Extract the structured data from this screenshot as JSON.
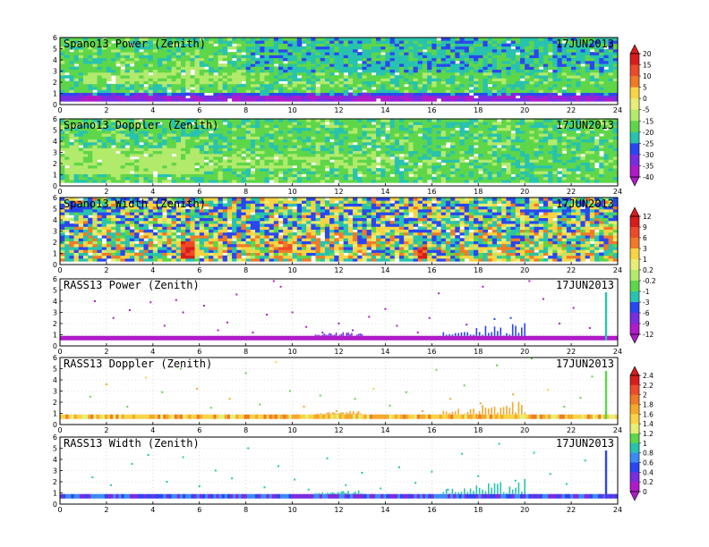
{
  "chart_data": [
    {
      "type": "heatmap",
      "title": "Spano13 Power (Zenith)",
      "date": "17JUN2013",
      "x_ticks": [
        "0",
        "2",
        "4",
        "6",
        "8",
        "10",
        "12",
        "14",
        "16",
        "18",
        "20",
        "22",
        "24"
      ],
      "y_ticks": [
        "0",
        "1",
        "2",
        "3",
        "4",
        "5",
        "6"
      ],
      "xlim": [
        0,
        24
      ],
      "ylim": [
        0,
        6
      ],
      "colorbar": "A",
      "field": {
        "base": -18,
        "features": [
          {
            "y0": 0.3,
            "y1": 0.75,
            "value": -35
          },
          {
            "y0": 0.75,
            "y1": 1.0,
            "value": -28
          },
          {
            "x0": 5.5,
            "x1": 6.0,
            "y0": 1.0,
            "y1": 4.0,
            "value": -12
          },
          {
            "x0": 1.0,
            "x1": 9.0,
            "y0": 1.8,
            "y1": 3.0,
            "value": -14
          },
          {
            "x0": 8.0,
            "x1": 24.0,
            "y0": 3.0,
            "y1": 6.0,
            "value": -22
          }
        ]
      }
    },
    {
      "type": "heatmap",
      "title": "Spano13 Doppler (Zenith)",
      "date": "17JUN2013",
      "x_ticks": [
        "0",
        "2",
        "4",
        "6",
        "8",
        "10",
        "12",
        "14",
        "16",
        "18",
        "20",
        "22",
        "24"
      ],
      "y_ticks": [
        "0",
        "1",
        "2",
        "3",
        "4",
        "5",
        "6"
      ],
      "xlim": [
        0,
        24
      ],
      "ylim": [
        0,
        6
      ],
      "colorbar": "A",
      "field": {
        "base": -18,
        "features": [
          {
            "x0": 0.0,
            "x1": 6.0,
            "y0": 1.0,
            "y1": 3.5,
            "value": -12
          },
          {
            "x0": 6.0,
            "x1": 14.0,
            "y0": 1.5,
            "y1": 3.0,
            "value": -14
          }
        ]
      }
    },
    {
      "type": "heatmap",
      "title": "Spano13 Width (Zenith)",
      "date": "17JUN2013",
      "x_ticks": [
        "0",
        "2",
        "4",
        "6",
        "8",
        "10",
        "12",
        "14",
        "16",
        "18",
        "20",
        "22",
        "24"
      ],
      "y_ticks": [
        "0",
        "1",
        "2",
        "3",
        "4",
        "5",
        "6"
      ],
      "xlim": [
        0,
        24
      ],
      "ylim": [
        0,
        6
      ],
      "colorbar": "B",
      "field": {
        "base": -1,
        "features": [
          {
            "y0": 0.3,
            "y1": 3.0,
            "value": 0.2
          },
          {
            "x0": 5.3,
            "x1": 5.7,
            "y0": 0.5,
            "y1": 2.0,
            "value": 8
          },
          {
            "x0": 9.5,
            "x1": 10.0,
            "y0": 1.0,
            "y1": 2.0,
            "value": 5
          },
          {
            "x0": 15.3,
            "x1": 15.8,
            "y0": 0.5,
            "y1": 1.5,
            "value": 9
          }
        ]
      }
    },
    {
      "type": "scatter",
      "title": "RASS13 Power (Zenith)",
      "date": "17JUN2013",
      "x_ticks": [
        "0",
        "2",
        "4",
        "6",
        "8",
        "10",
        "12",
        "14",
        "16",
        "18",
        "20",
        "22",
        "24"
      ],
      "y_ticks": [
        "0",
        "1",
        "2",
        "3",
        "4",
        "5",
        "6"
      ],
      "xlim": [
        0,
        24
      ],
      "ylim": [
        0,
        6
      ],
      "colorbar": "B",
      "band": {
        "y0": 0.5,
        "y1": 0.9,
        "value": -12
      },
      "spike": {
        "x": 23.5,
        "y0": 0.5,
        "y1": 4.8,
        "value": -3
      },
      "streaks": [
        {
          "x0": 11.0,
          "x1": 13.0,
          "y0": 0.9,
          "y1": 1.4,
          "value": -9
        },
        {
          "x0": 16.5,
          "x1": 20.0,
          "y0": 0.9,
          "y1": 2.3,
          "value": -6
        }
      ],
      "points": [
        [
          1.5,
          4.0,
          -12
        ],
        [
          2.3,
          2.5,
          -12
        ],
        [
          3.0,
          3.2,
          -12
        ],
        [
          3.9,
          3.9,
          -12
        ],
        [
          4.5,
          1.8,
          -12
        ],
        [
          5.0,
          4.1,
          -12
        ],
        [
          5.3,
          3.0,
          -12
        ],
        [
          6.2,
          3.6,
          -12
        ],
        [
          6.8,
          1.4,
          -12
        ],
        [
          7.2,
          2.1,
          -12
        ],
        [
          7.6,
          4.6,
          -12
        ],
        [
          8.3,
          1.2,
          -12
        ],
        [
          8.9,
          2.8,
          -12
        ],
        [
          9.2,
          5.8,
          -12
        ],
        [
          9.5,
          5.3,
          -12
        ],
        [
          10.0,
          3.0,
          -12
        ],
        [
          10.6,
          1.7,
          -12
        ],
        [
          11.3,
          1.2,
          -9
        ],
        [
          12.0,
          2.0,
          -12
        ],
        [
          12.6,
          1.4,
          -9
        ],
        [
          13.3,
          2.6,
          -12
        ],
        [
          14.0,
          3.3,
          -12
        ],
        [
          14.5,
          1.8,
          -12
        ],
        [
          15.4,
          1.2,
          -12
        ],
        [
          15.9,
          2.5,
          -12
        ],
        [
          16.3,
          4.7,
          -12
        ],
        [
          17.5,
          1.9,
          -9
        ],
        [
          18.2,
          5.3,
          -12
        ],
        [
          18.7,
          2.4,
          -6
        ],
        [
          19.4,
          2.5,
          -6
        ],
        [
          20.2,
          5.8,
          -12
        ],
        [
          20.8,
          4.2,
          -12
        ],
        [
          21.5,
          2.0,
          -12
        ],
        [
          22.1,
          3.4,
          -12
        ],
        [
          22.8,
          1.6,
          -12
        ]
      ]
    },
    {
      "type": "scatter",
      "title": "RASS13 Doppler (Zenith)",
      "date": "17JUN2013",
      "x_ticks": [
        "0",
        "2",
        "4",
        "6",
        "8",
        "10",
        "12",
        "14",
        "16",
        "18",
        "20",
        "22",
        "24"
      ],
      "y_ticks": [
        "0",
        "1",
        "2",
        "3",
        "4",
        "5",
        "6"
      ],
      "xlim": [
        0,
        24
      ],
      "ylim": [
        0,
        6
      ],
      "colorbar": "C",
      "band": {
        "y0": 0.5,
        "y1": 0.9,
        "value": 1.6
      },
      "spike": {
        "x": 23.5,
        "y0": 0.5,
        "y1": 4.8,
        "value": 1.1
      },
      "streaks": [
        {
          "x0": 11.0,
          "x1": 13.0,
          "y0": 0.9,
          "y1": 1.3,
          "value": 1.6
        },
        {
          "x0": 16.5,
          "x1": 20.0,
          "y0": 0.9,
          "y1": 2.3,
          "value": 1.6
        }
      ],
      "points": [
        [
          1.3,
          2.5,
          1.0
        ],
        [
          2.0,
          3.6,
          1.6
        ],
        [
          2.9,
          1.6,
          1.0
        ],
        [
          3.7,
          4.2,
          1.4
        ],
        [
          4.4,
          2.9,
          1.0
        ],
        [
          5.2,
          5.0,
          1.0
        ],
        [
          5.9,
          3.2,
          1.6
        ],
        [
          6.5,
          1.5,
          1.0
        ],
        [
          7.3,
          2.3,
          1.6
        ],
        [
          8.0,
          4.6,
          1.0
        ],
        [
          8.6,
          1.8,
          1.0
        ],
        [
          9.3,
          5.6,
          1.4
        ],
        [
          9.9,
          3.0,
          1.0
        ],
        [
          10.5,
          1.6,
          1.6
        ],
        [
          11.2,
          2.6,
          1.0
        ],
        [
          11.9,
          1.2,
          1.6
        ],
        [
          12.7,
          2.3,
          1.0
        ],
        [
          13.5,
          3.2,
          1.4
        ],
        [
          14.2,
          1.7,
          1.0
        ],
        [
          14.9,
          2.9,
          1.0
        ],
        [
          15.6,
          1.2,
          1.6
        ],
        [
          16.2,
          4.9,
          1.0
        ],
        [
          16.8,
          2.3,
          1.6
        ],
        [
          17.4,
          3.5,
          1.0
        ],
        [
          18.1,
          1.9,
          1.6
        ],
        [
          18.8,
          5.3,
          1.0
        ],
        [
          19.5,
          2.7,
          1.6
        ],
        [
          20.3,
          5.9,
          1.0
        ],
        [
          21.0,
          3.1,
          1.4
        ],
        [
          21.7,
          1.6,
          1.0
        ],
        [
          22.4,
          2.4,
          1.0
        ],
        [
          22.9,
          4.3,
          1.0
        ]
      ]
    },
    {
      "type": "scatter",
      "title": "RASS13 Width (Zenith)",
      "date": "17JUN2013",
      "x_ticks": [
        "0",
        "2",
        "4",
        "6",
        "8",
        "10",
        "12",
        "14",
        "16",
        "18",
        "20",
        "22",
        "24"
      ],
      "y_ticks": [
        "0",
        "1",
        "2",
        "3",
        "4",
        "5",
        "6"
      ],
      "xlim": [
        0,
        24
      ],
      "ylim": [
        0,
        6
      ],
      "colorbar": "C",
      "band": {
        "y0": 0.5,
        "y1": 0.9,
        "value": 0.5
      },
      "spike": {
        "x": 23.5,
        "y0": 0.5,
        "y1": 4.8,
        "value": 0.5
      },
      "streaks": [
        {
          "x0": 11.0,
          "x1": 13.0,
          "y0": 0.9,
          "y1": 1.3,
          "value": 0.9
        },
        {
          "x0": 16.5,
          "x1": 20.0,
          "y0": 0.9,
          "y1": 2.3,
          "value": 0.9
        }
      ],
      "points": [
        [
          1.4,
          2.4,
          0.9
        ],
        [
          2.2,
          1.7,
          0.9
        ],
        [
          3.1,
          3.6,
          0.9
        ],
        [
          3.8,
          4.4,
          0.9
        ],
        [
          4.6,
          2.0,
          0.9
        ],
        [
          5.3,
          4.2,
          0.9
        ],
        [
          6.0,
          1.6,
          0.9
        ],
        [
          6.7,
          3.0,
          0.9
        ],
        [
          7.4,
          2.3,
          0.9
        ],
        [
          8.1,
          5.0,
          0.9
        ],
        [
          8.8,
          1.5,
          0.9
        ],
        [
          9.4,
          3.4,
          0.9
        ],
        [
          10.1,
          2.2,
          0.9
        ],
        [
          10.7,
          1.3,
          0.9
        ],
        [
          11.5,
          4.1,
          0.9
        ],
        [
          12.3,
          1.7,
          0.9
        ],
        [
          13.0,
          2.8,
          0.9
        ],
        [
          13.8,
          1.4,
          0.9
        ],
        [
          14.6,
          3.3,
          0.9
        ],
        [
          15.3,
          1.9,
          0.9
        ],
        [
          16.0,
          2.9,
          0.9
        ],
        [
          16.7,
          1.3,
          0.9
        ],
        [
          17.3,
          4.5,
          0.9
        ],
        [
          18.0,
          2.5,
          0.9
        ],
        [
          18.9,
          5.4,
          0.9
        ],
        [
          19.6,
          2.1,
          0.9
        ],
        [
          20.4,
          4.6,
          0.9
        ],
        [
          21.1,
          2.7,
          0.9
        ],
        [
          21.8,
          1.8,
          0.9
        ],
        [
          22.6,
          3.9,
          0.9
        ]
      ]
    }
  ],
  "colorbars": {
    "A": {
      "labels": [
        "20",
        "15",
        "10",
        "5",
        "0",
        "-5",
        "-15",
        "-20",
        "-25",
        "-30",
        "-35",
        "-40"
      ],
      "values": [
        20,
        15,
        10,
        5,
        0,
        -5,
        -15,
        -20,
        -25,
        -30,
        -35,
        -40
      ]
    },
    "B": {
      "labels": [
        "12",
        "9",
        "6",
        "3",
        "1",
        "0.2",
        "-0.2",
        "-1",
        "-3",
        "-6",
        "-9",
        "-12"
      ],
      "values": [
        12,
        9,
        6,
        3,
        1,
        0.2,
        -0.2,
        -1,
        -3,
        -6,
        -9,
        -12
      ]
    },
    "C": {
      "labels": [
        "2.4",
        "2.2",
        "2",
        "1.8",
        "1.6",
        "1.4",
        "1.2",
        "1",
        "0.8",
        "0.6",
        "0.4",
        "0.2",
        "0"
      ],
      "values": [
        2.4,
        2.2,
        2,
        1.8,
        1.6,
        1.4,
        1.2,
        1,
        0.8,
        0.6,
        0.4,
        0.2,
        0
      ]
    }
  },
  "palette": [
    "#d81c1c",
    "#ee4a2a",
    "#f07a28",
    "#f5a82c",
    "#f8d444",
    "#e6ee76",
    "#b2ea6c",
    "#5ed64a",
    "#28c3ae",
    "#3c8af2",
    "#2a46f0",
    "#7a2ce0",
    "#b01ac8"
  ]
}
